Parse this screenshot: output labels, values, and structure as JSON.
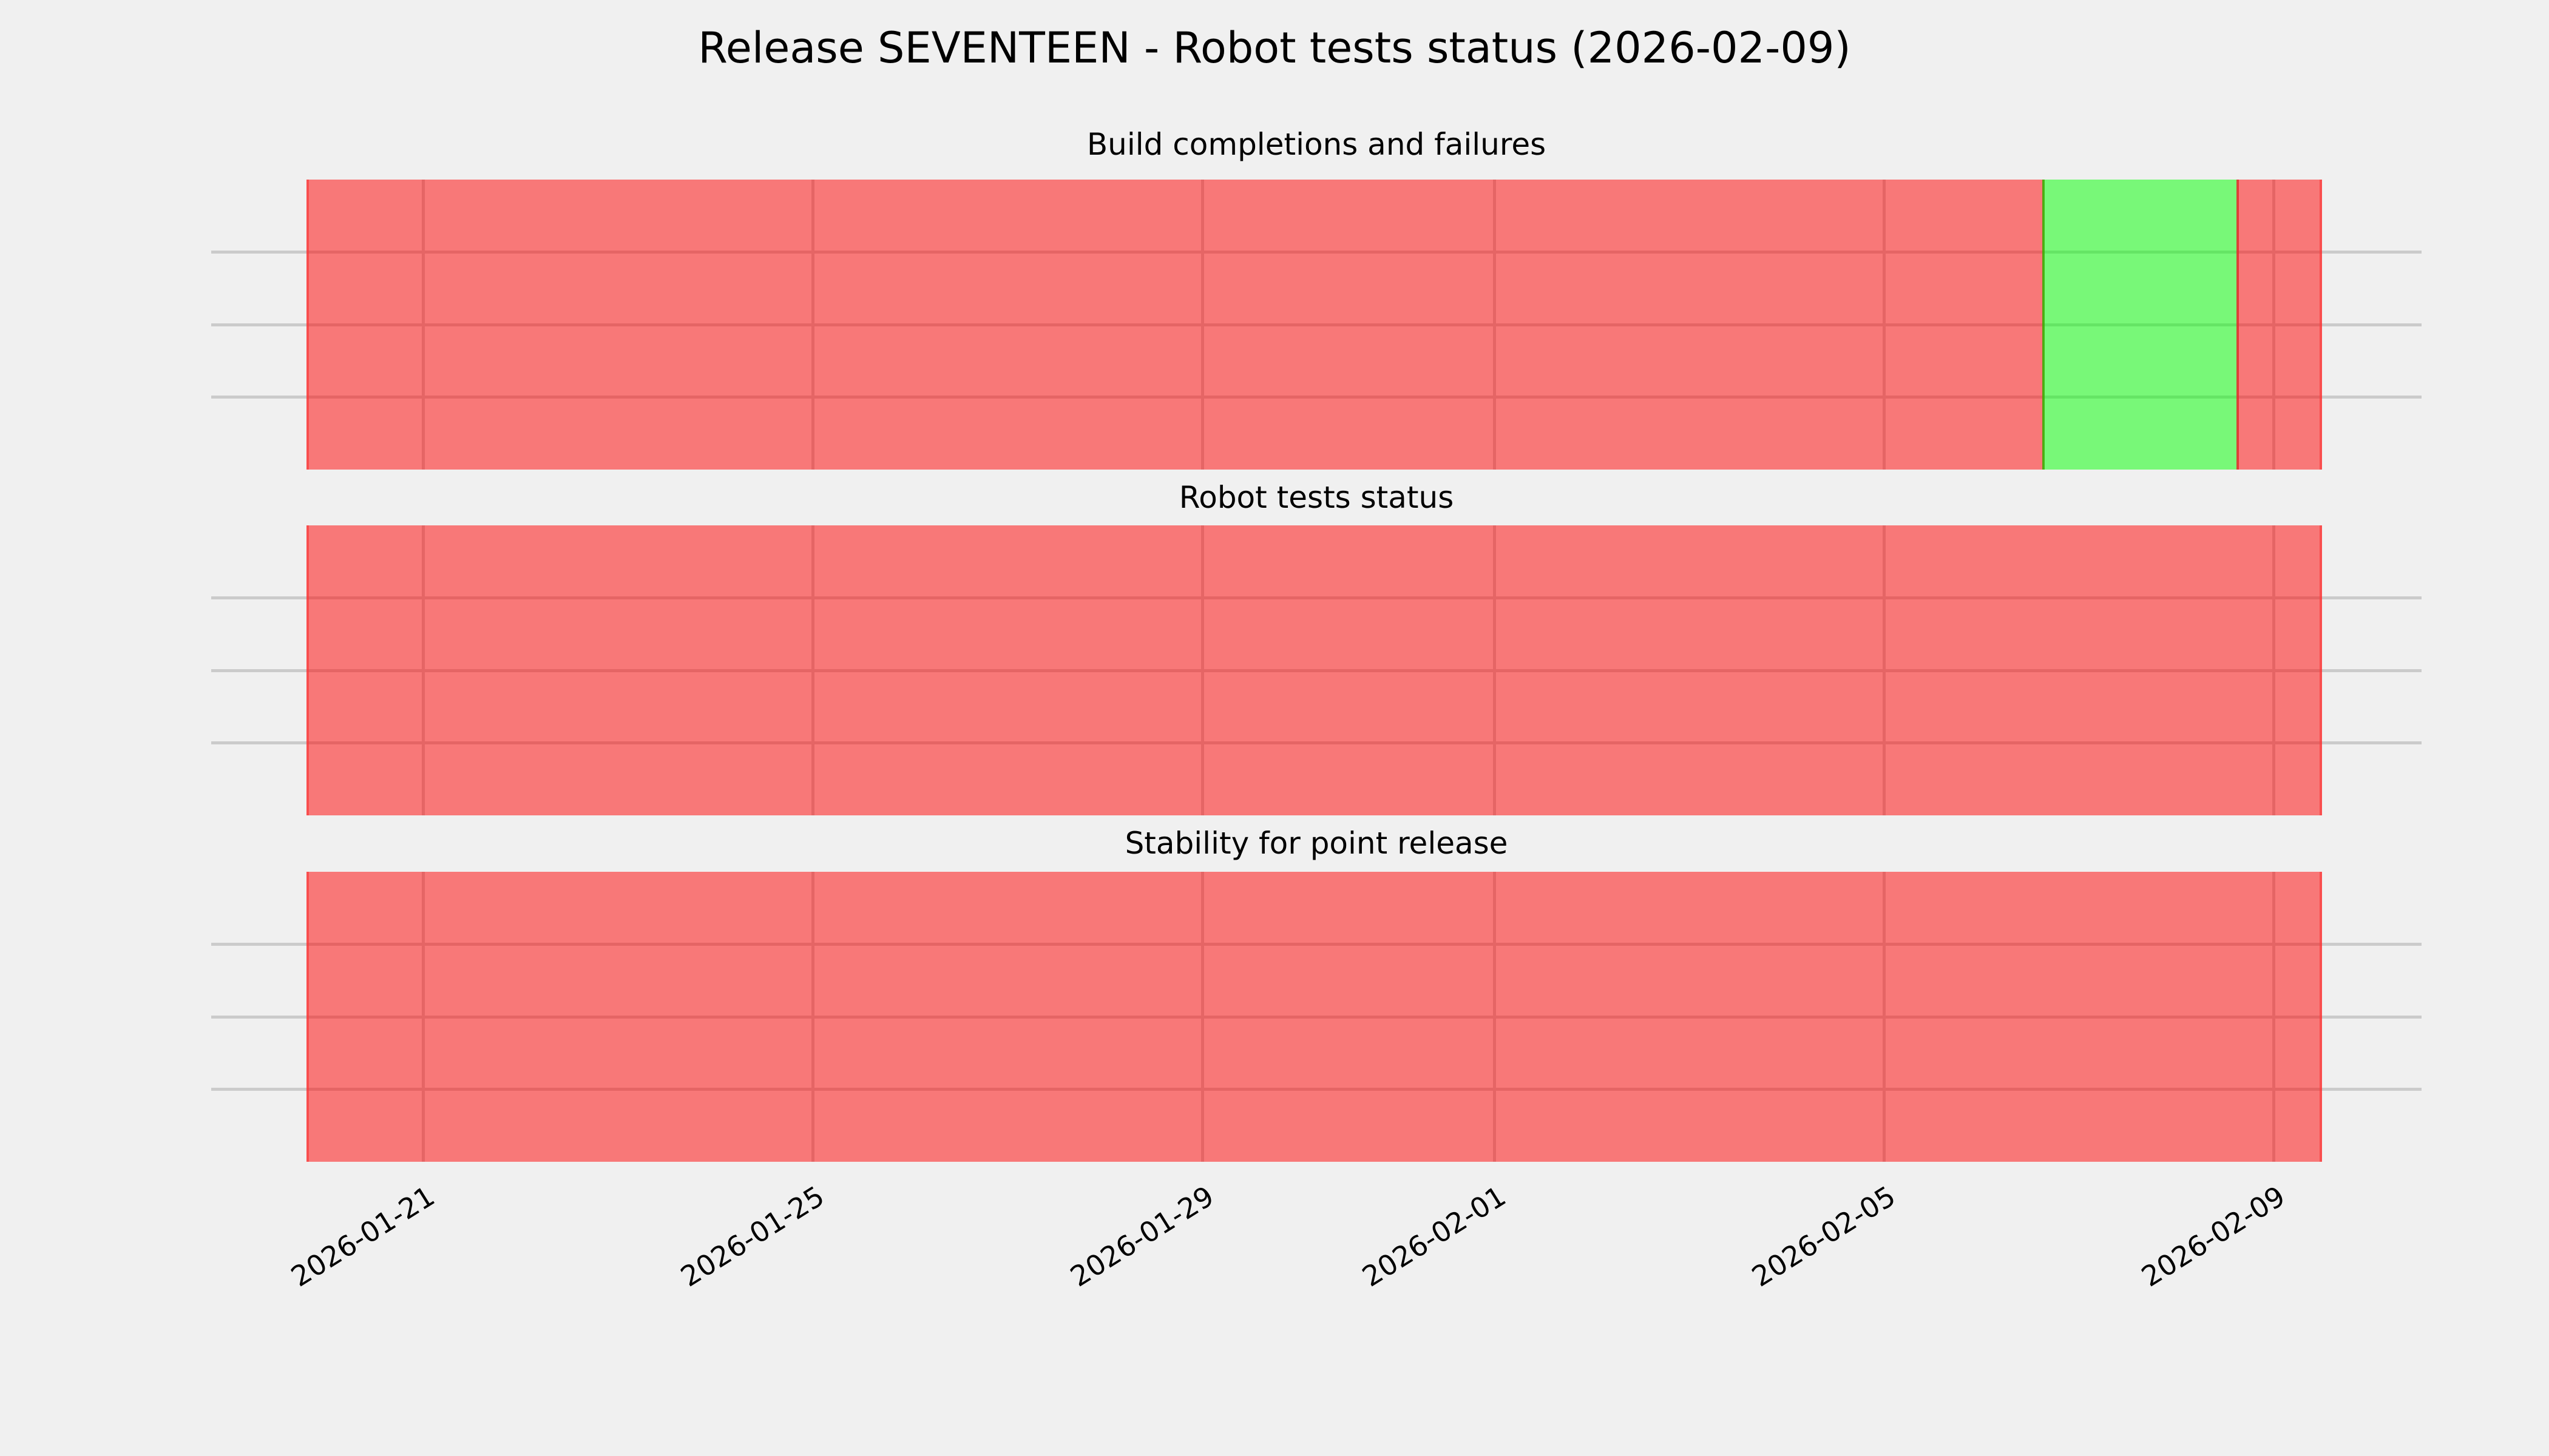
{
  "figure": {
    "title": "Release SEVENTEEN - Robot tests status (2026-02-09)",
    "background_color": "#f0f0f0",
    "grid_color": "#cbcbcb",
    "text_color": "#000000"
  },
  "chart_data": {
    "type": "area",
    "subtype": "status-timeline-spans",
    "title": "Release SEVENTEEN - Robot tests status (2026-02-09)",
    "legend": false,
    "grid": true,
    "x_axis": {
      "unit": "days",
      "t_origin_date": "2026-01-18",
      "t_min": 0.82,
      "t_max": 23.52,
      "ticks": [
        {
          "t": 3,
          "label": "2026-01-21"
        },
        {
          "t": 7,
          "label": "2026-01-25"
        },
        {
          "t": 11,
          "label": "2026-01-29"
        },
        {
          "t": 14,
          "label": "2026-02-01"
        },
        {
          "t": 18,
          "label": "2026-02-05"
        },
        {
          "t": 22,
          "label": "2026-02-09"
        }
      ],
      "tick_rotation_deg": 32
    },
    "y_axis": {
      "tick_labels": [],
      "gridlines_per_panel": 3
    },
    "colors": {
      "fail_base": "#ff0000",
      "pass_base": "#00ff00",
      "alpha": 0.5,
      "fail_rendered": "#f77878",
      "pass_rendered": "#78f778"
    },
    "subplots": [
      {
        "title": "Build completions and failures",
        "segments": [
          {
            "status": "fail",
            "t_start": 1.8,
            "t_end": 19.64,
            "date_start": "2026-01-20",
            "date_end": "2026-02-06"
          },
          {
            "status": "pass",
            "t_start": 19.64,
            "t_end": 21.63,
            "date_start": "2026-02-07",
            "date_end": "2026-02-08"
          },
          {
            "status": "fail",
            "t_start": 21.63,
            "t_end": 22.5,
            "date_start": "2026-02-09",
            "date_end": "2026-02-09"
          }
        ]
      },
      {
        "title": "Robot tests status",
        "segments": [
          {
            "status": "fail",
            "t_start": 1.8,
            "t_end": 22.5,
            "date_start": "2026-01-20",
            "date_end": "2026-02-09"
          }
        ]
      },
      {
        "title": "Stability for point release",
        "segments": [
          {
            "status": "fail",
            "t_start": 1.8,
            "t_end": 22.5,
            "date_start": "2026-01-20",
            "date_end": "2026-02-09"
          }
        ]
      }
    ]
  }
}
